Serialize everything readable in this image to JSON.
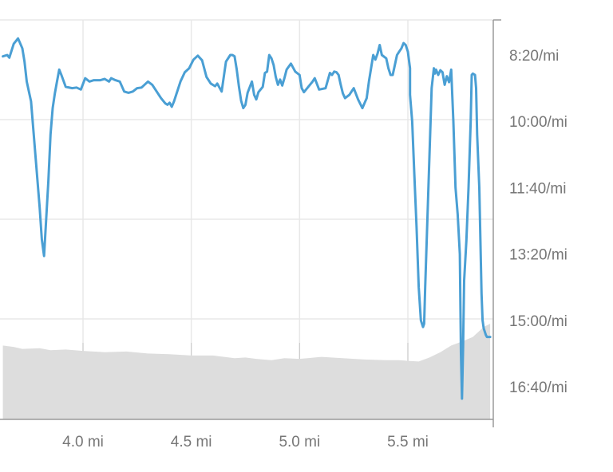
{
  "chart_data": {
    "type": "line",
    "title": "",
    "xlabel": "",
    "ylabel": "",
    "xlim": [
      3.63,
      5.88
    ],
    "ylim": [
      980,
      440
    ],
    "y_axis_side": "right",
    "y_inverted": true,
    "grid": true,
    "legend": "none",
    "x_ticks": [
      {
        "value": 4.0,
        "label": "4.0 mi"
      },
      {
        "value": 4.5,
        "label": "4.5 mi"
      },
      {
        "value": 5.0,
        "label": "5.0 mi"
      },
      {
        "value": 5.5,
        "label": "5.5 mi"
      }
    ],
    "y_ticks": [
      {
        "value": 500,
        "label": "8:20/mi"
      },
      {
        "value": 600,
        "label": "10:00/mi"
      },
      {
        "value": 700,
        "label": "11:40/mi"
      },
      {
        "value": 800,
        "label": "13:20/mi"
      },
      {
        "value": 900,
        "label": "15:00/mi"
      },
      {
        "value": 1000,
        "label": "16:40/mi"
      }
    ],
    "series": [
      {
        "type": "line",
        "color": "#4a9fd4",
        "points": [
          [
            3.63,
            502
          ],
          [
            3.65,
            500
          ],
          [
            3.66,
            504
          ],
          [
            3.68,
            483
          ],
          [
            3.7,
            475
          ],
          [
            3.72,
            490
          ],
          [
            3.73,
            510
          ],
          [
            3.74,
            540
          ],
          [
            3.76,
            570
          ],
          [
            3.78,
            650
          ],
          [
            3.8,
            730
          ],
          [
            3.81,
            778
          ],
          [
            3.82,
            803
          ],
          [
            3.84,
            690
          ],
          [
            3.85,
            620
          ],
          [
            3.86,
            580
          ],
          [
            3.87,
            558
          ],
          [
            3.88,
            540
          ],
          [
            3.89,
            522
          ],
          [
            3.9,
            530
          ],
          [
            3.92,
            548
          ],
          [
            3.95,
            550
          ],
          [
            3.97,
            549
          ],
          [
            3.99,
            552
          ],
          [
            4.01,
            535
          ],
          [
            4.03,
            540
          ],
          [
            4.05,
            538
          ],
          [
            4.08,
            538
          ],
          [
            4.1,
            536
          ],
          [
            4.12,
            540
          ],
          [
            4.13,
            535
          ],
          [
            4.15,
            538
          ],
          [
            4.17,
            540
          ],
          [
            4.19,
            555
          ],
          [
            4.21,
            557
          ],
          [
            4.23,
            555
          ],
          [
            4.25,
            550
          ],
          [
            4.27,
            549
          ],
          [
            4.3,
            540
          ],
          [
            4.32,
            545
          ],
          [
            4.34,
            555
          ],
          [
            4.36,
            565
          ],
          [
            4.38,
            573
          ],
          [
            4.39,
            575
          ],
          [
            4.4,
            572
          ],
          [
            4.41,
            578
          ],
          [
            4.42,
            570
          ],
          [
            4.43,
            560
          ],
          [
            4.45,
            540
          ],
          [
            4.47,
            526
          ],
          [
            4.49,
            520
          ],
          [
            4.51,
            507
          ],
          [
            4.53,
            501
          ],
          [
            4.55,
            508
          ],
          [
            4.57,
            533
          ],
          [
            4.59,
            543
          ],
          [
            4.61,
            547
          ],
          [
            4.62,
            543
          ],
          [
            4.64,
            555
          ],
          [
            4.66,
            510
          ],
          [
            4.68,
            500
          ],
          [
            4.69,
            500
          ],
          [
            4.7,
            502
          ],
          [
            4.71,
            522
          ],
          [
            4.72,
            548
          ],
          [
            4.73,
            569
          ],
          [
            4.74,
            580
          ],
          [
            4.75,
            575
          ],
          [
            4.76,
            557
          ],
          [
            4.78,
            540
          ],
          [
            4.79,
            560
          ],
          [
            4.8,
            567
          ],
          [
            4.81,
            556
          ],
          [
            4.83,
            548
          ],
          [
            4.84,
            527
          ],
          [
            4.85,
            525
          ],
          [
            4.86,
            500
          ],
          [
            4.87,
            505
          ],
          [
            4.88,
            515
          ],
          [
            4.89,
            533
          ],
          [
            4.9,
            545
          ],
          [
            4.91,
            537
          ],
          [
            4.92,
            546
          ],
          [
            4.93,
            535
          ],
          [
            4.94,
            522
          ],
          [
            4.96,
            513
          ],
          [
            4.98,
            525
          ],
          [
            5.0,
            530
          ],
          [
            5.01,
            550
          ],
          [
            5.02,
            556
          ],
          [
            5.04,
            548
          ],
          [
            5.06,
            540
          ],
          [
            5.07,
            535
          ],
          [
            5.09,
            552
          ],
          [
            5.12,
            550
          ],
          [
            5.14,
            527
          ],
          [
            5.15,
            530
          ],
          [
            5.16,
            525
          ],
          [
            5.17,
            526
          ],
          [
            5.18,
            530
          ],
          [
            5.19,
            545
          ],
          [
            5.2,
            558
          ],
          [
            5.21,
            565
          ],
          [
            5.23,
            560
          ],
          [
            5.25,
            550
          ],
          [
            5.27,
            567
          ],
          [
            5.29,
            580
          ],
          [
            5.31,
            565
          ],
          [
            5.32,
            540
          ],
          [
            5.34,
            500
          ],
          [
            5.35,
            507
          ],
          [
            5.36,
            498
          ],
          [
            5.37,
            485
          ],
          [
            5.38,
            500
          ],
          [
            5.4,
            505
          ],
          [
            5.41,
            520
          ],
          [
            5.42,
            530
          ],
          [
            5.43,
            530
          ],
          [
            5.44,
            515
          ],
          [
            5.45,
            500
          ],
          [
            5.46,
            495
          ],
          [
            5.47,
            490
          ],
          [
            5.48,
            482
          ],
          [
            5.49,
            485
          ],
          [
            5.5,
            495
          ],
          [
            5.51,
            520
          ],
          [
            5.51,
            560
          ],
          [
            5.52,
            600
          ],
          [
            5.53,
            680
          ],
          [
            5.54,
            760
          ],
          [
            5.55,
            850
          ],
          [
            5.56,
            900
          ],
          [
            5.57,
            910
          ],
          [
            5.575,
            905
          ],
          [
            5.58,
            850
          ],
          [
            5.59,
            750
          ],
          [
            5.6,
            650
          ],
          [
            5.61,
            550
          ],
          [
            5.62,
            520
          ],
          [
            5.625,
            528
          ],
          [
            5.63,
            522
          ],
          [
            5.64,
            530
          ],
          [
            5.65,
            523
          ],
          [
            5.66,
            526
          ],
          [
            5.67,
            545
          ],
          [
            5.68,
            532
          ],
          [
            5.69,
            541
          ],
          [
            5.7,
            522
          ],
          [
            5.71,
            600
          ],
          [
            5.72,
            700
          ],
          [
            5.73,
            740
          ],
          [
            5.74,
            800
          ],
          [
            5.745,
            950
          ],
          [
            5.75,
            1018
          ],
          [
            5.755,
            940
          ],
          [
            5.76,
            840
          ],
          [
            5.77,
            780
          ],
          [
            5.78,
            700
          ],
          [
            5.79,
            600
          ],
          [
            5.795,
            530
          ],
          [
            5.8,
            528
          ],
          [
            5.81,
            530
          ],
          [
            5.815,
            550
          ],
          [
            5.82,
            620
          ],
          [
            5.83,
            700
          ],
          [
            5.835,
            780
          ],
          [
            5.84,
            860
          ],
          [
            5.845,
            900
          ],
          [
            5.85,
            912
          ],
          [
            5.86,
            922
          ],
          [
            5.865,
            925
          ],
          [
            5.88,
            925
          ]
        ]
      },
      {
        "type": "area",
        "color": "#dddddd",
        "baseline_value": 1050,
        "points": [
          [
            3.63,
            938
          ],
          [
            3.68,
            940
          ],
          [
            3.72,
            943
          ],
          [
            3.8,
            942
          ],
          [
            3.85,
            945
          ],
          [
            3.92,
            944
          ],
          [
            4.0,
            946
          ],
          [
            4.1,
            948
          ],
          [
            4.2,
            947
          ],
          [
            4.3,
            950
          ],
          [
            4.4,
            951
          ],
          [
            4.5,
            953
          ],
          [
            4.6,
            953
          ],
          [
            4.7,
            957
          ],
          [
            4.75,
            956
          ],
          [
            4.8,
            958
          ],
          [
            4.87,
            960
          ],
          [
            4.93,
            957
          ],
          [
            5.0,
            958
          ],
          [
            5.1,
            955
          ],
          [
            5.2,
            957
          ],
          [
            5.3,
            959
          ],
          [
            5.4,
            960
          ],
          [
            5.46,
            960
          ],
          [
            5.5,
            961
          ],
          [
            5.55,
            962
          ],
          [
            5.6,
            956
          ],
          [
            5.65,
            948
          ],
          [
            5.7,
            938
          ],
          [
            5.75,
            932
          ],
          [
            5.8,
            925
          ],
          [
            5.85,
            910
          ],
          [
            5.88,
            905
          ]
        ]
      }
    ]
  }
}
